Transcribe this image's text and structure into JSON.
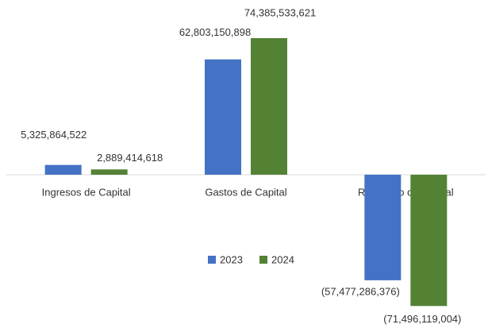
{
  "chart_data": {
    "type": "bar",
    "categories": [
      "Ingresos de Capital",
      "Gastos de Capital",
      "Resultado de Capital"
    ],
    "series": [
      {
        "name": "2023",
        "color": "#4472c4",
        "values": [
          5325864522,
          62803150898,
          -57477286376
        ],
        "value_labels": [
          "5,325,864,522",
          "62,803,150,898",
          "(57,477,286,376)"
        ]
      },
      {
        "name": "2024",
        "color": "#548235",
        "values": [
          2889414618,
          74385533621,
          -71496119004
        ],
        "value_labels": [
          "2,889,414,618",
          "74,385,533,621",
          "(71,496,119,004)"
        ]
      }
    ],
    "legend": "bottom"
  }
}
